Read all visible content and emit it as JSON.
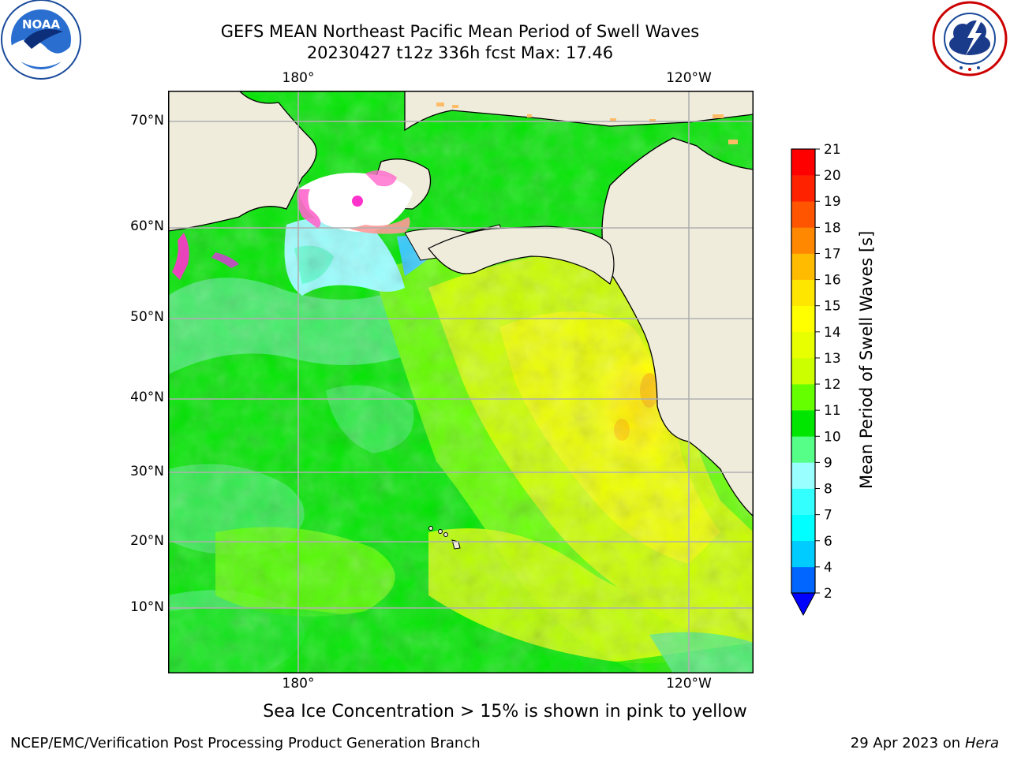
{
  "title": {
    "line1": "GEFS MEAN Northeast Pacific Mean Period of Swell Waves",
    "line2": "20230427 t12z 336h fcst   Max: 17.46"
  },
  "logos": {
    "left": {
      "text": "NOAA",
      "icon": "noaa-logo-icon"
    },
    "right": {
      "icon": "nws-logo-icon"
    }
  },
  "map": {
    "lon_labels_top": [
      "180°",
      "120°W"
    ],
    "lon_labels_bottom": [
      "180°",
      "120°W"
    ],
    "lat_labels": [
      "70°N",
      "60°N",
      "50°N",
      "40°N",
      "30°N",
      "20°N",
      "10°N"
    ],
    "land_color": "#efecdc",
    "ocean_dominant_colors": [
      "#00e600",
      "#66ff00",
      "#ccff00",
      "#eeff00"
    ]
  },
  "colorbar": {
    "label": "Mean Period of Swell Waves [s]",
    "ticks": [
      "2",
      "4",
      "6",
      "7",
      "8",
      "9",
      "10",
      "11",
      "12",
      "13",
      "14",
      "15",
      "16",
      "17",
      "18",
      "19",
      "20",
      "21"
    ],
    "colors": [
      "#0066ff",
      "#00ccff",
      "#00ffff",
      "#33ffff",
      "#99ffff",
      "#55ff88",
      "#00e600",
      "#66ff00",
      "#ccff00",
      "#e8ff00",
      "#ffff00",
      "#ffe600",
      "#ffbb00",
      "#ff8800",
      "#ff5500",
      "#ff2200",
      "#ff0000"
    ],
    "extend_color": "#0000ff"
  },
  "caption": "Sea Ice Concentration > 15% is shown in pink to yellow",
  "footer": {
    "left": "NCEP/EMC/Verification Post Processing Product Generation Branch",
    "right_date": "29 Apr 2023 on ",
    "right_host": "Hera"
  }
}
